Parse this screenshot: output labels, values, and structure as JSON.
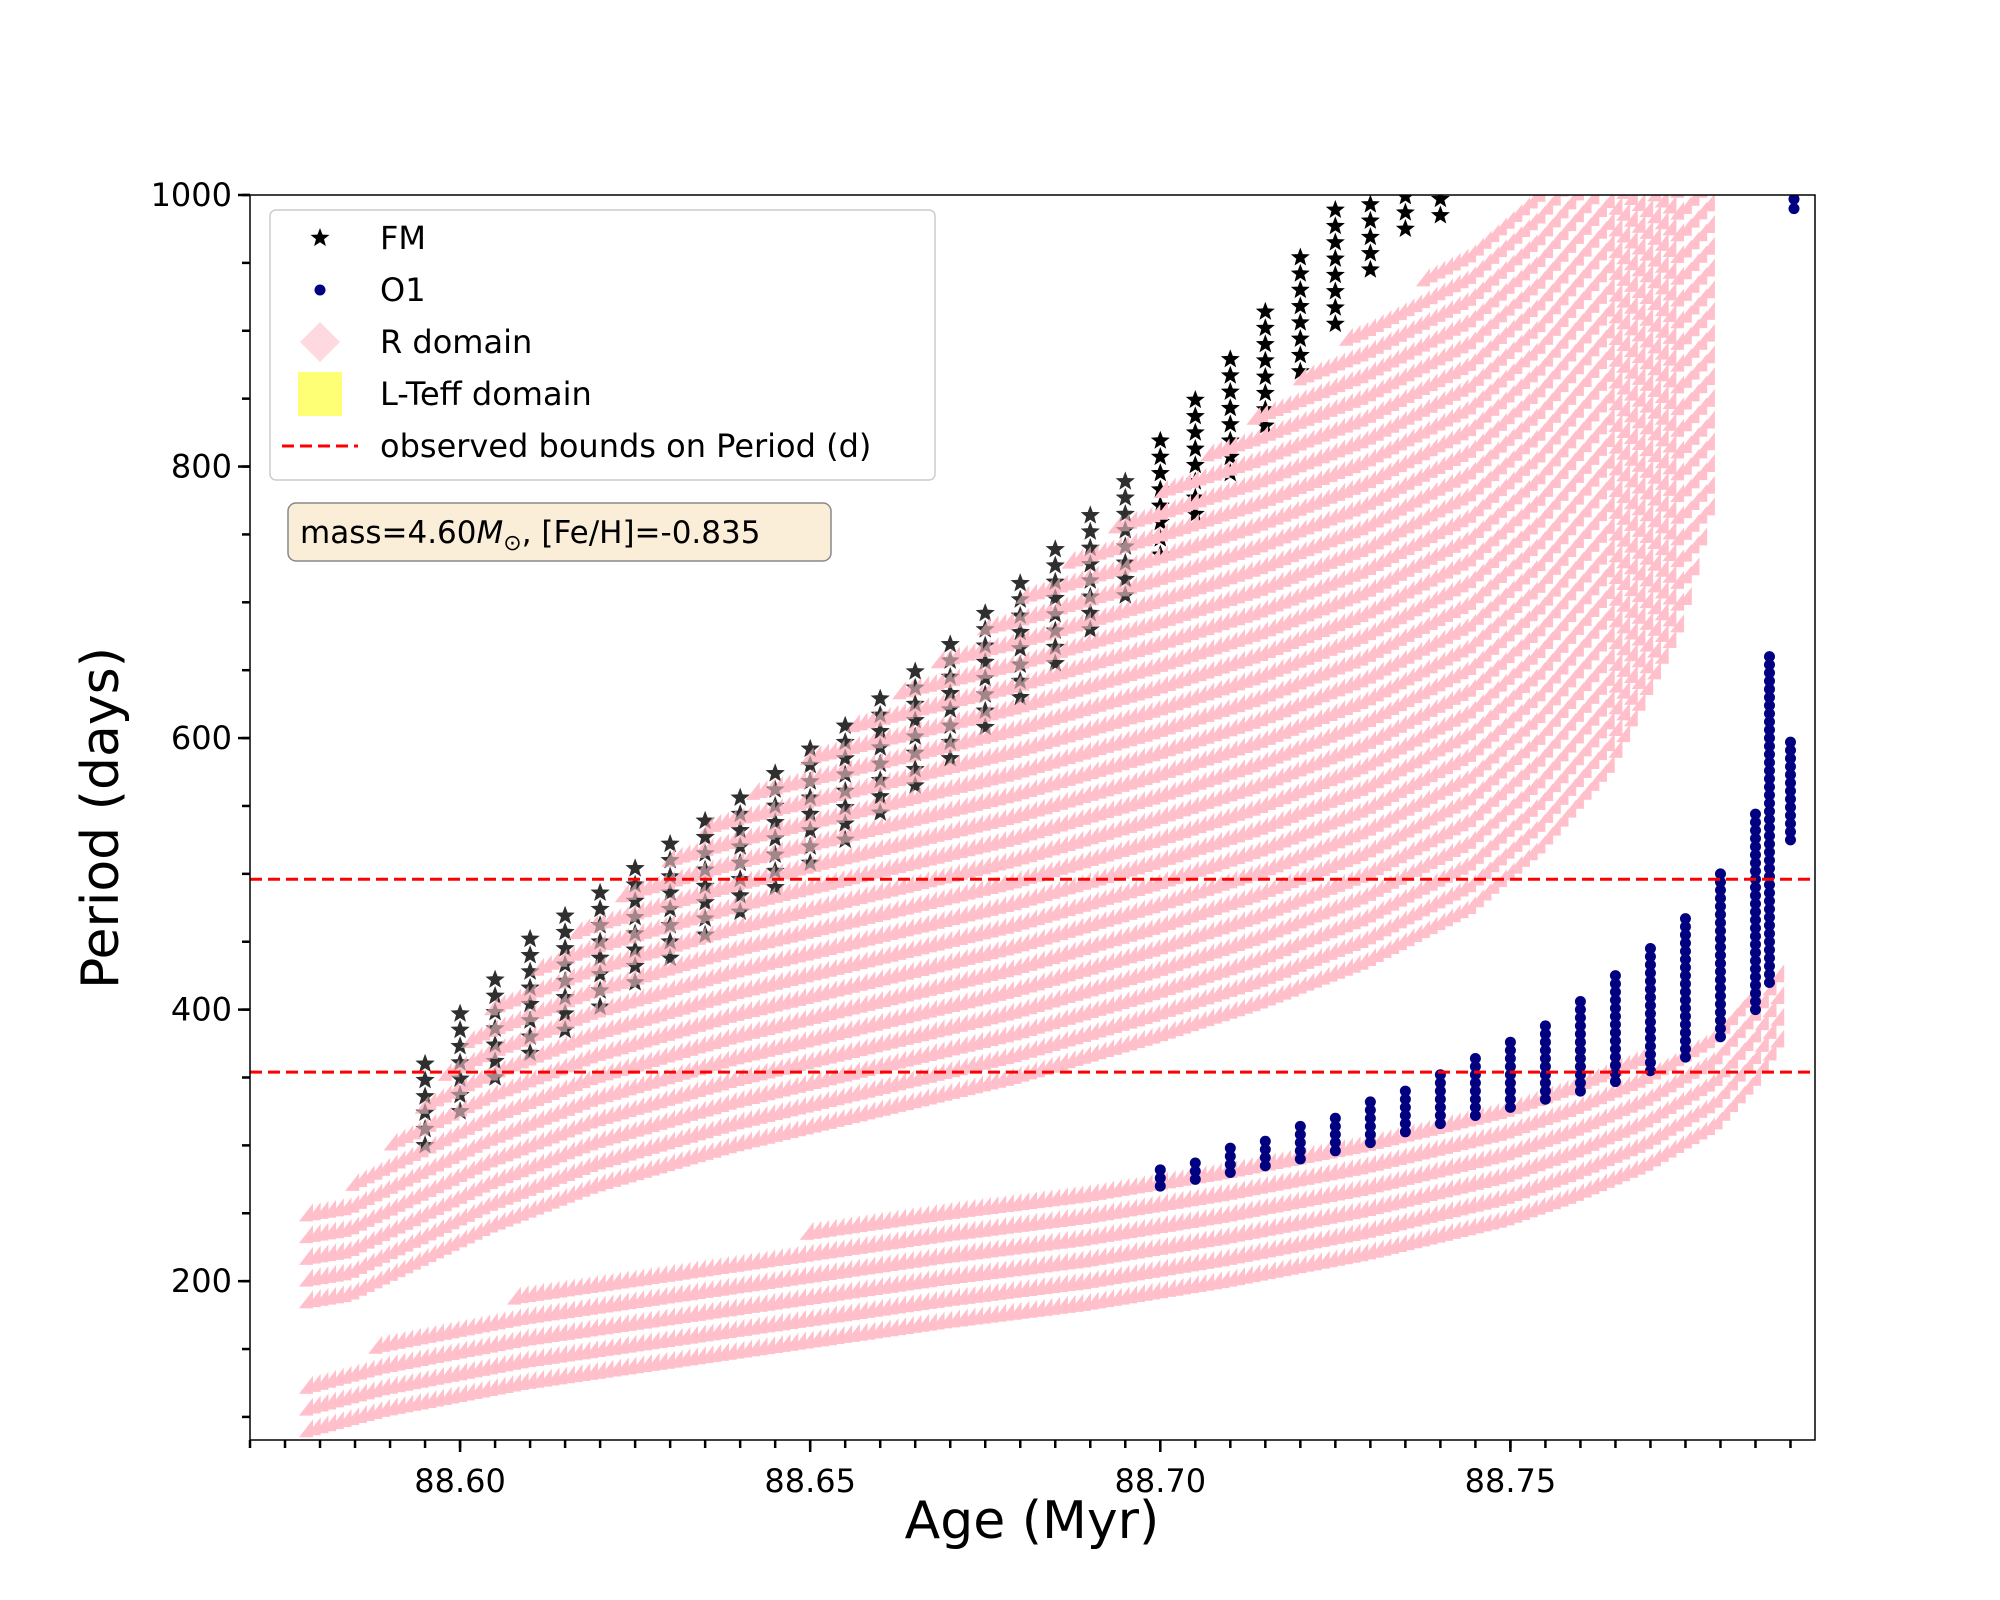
{
  "chart_data": {
    "type": "scatter",
    "title": "",
    "xlabel": "Age (Myr)",
    "ylabel": "Period (days)",
    "xlim": [
      88.57,
      88.7935
    ],
    "ylim": [
      83,
      1000
    ],
    "x_ticks": [
      "88.60",
      "88.65",
      "88.70",
      "88.75"
    ],
    "x_tick_values": [
      88.6,
      88.65,
      88.7,
      88.75
    ],
    "y_ticks": [
      "200",
      "400",
      "600",
      "800",
      "1000"
    ],
    "y_tick_values": [
      200,
      400,
      600,
      800,
      1000
    ],
    "minor_tick_step_x": 0.005,
    "minor_tick_step_y": 50,
    "grid": false,
    "legend_position": "top-left",
    "legend": [
      {
        "label": "FM",
        "marker": "star",
        "color": "#000000"
      },
      {
        "label": "O1",
        "marker": "circle",
        "color": "#000080"
      },
      {
        "label": "R domain",
        "marker": "diamond",
        "color": "#ffc0cb"
      },
      {
        "label": "L-Teff domain",
        "marker": "square",
        "color": "#ffff66"
      },
      {
        "label": "observed bounds on Period (d)",
        "marker": "dashed-line",
        "color": "#ff0000"
      }
    ],
    "annotation": {
      "prefix": "mass=4.60",
      "symbol": "M",
      "subscript": "⊙",
      "suffix": ", [Fe/H]=-0.835"
    },
    "hlines": [
      {
        "name": "observed upper bound",
        "y": 496,
        "color": "#ff0000",
        "style": "dashed"
      },
      {
        "name": "observed lower bound",
        "y": 354,
        "color": "#ff0000",
        "style": "dashed"
      }
    ],
    "series": [
      {
        "name": "FM",
        "marker": "star",
        "color": "#000000",
        "x": [
          88.595,
          88.6,
          88.605,
          88.61,
          88.615,
          88.62,
          88.625,
          88.63,
          88.635,
          88.64,
          88.645,
          88.65,
          88.655,
          88.66,
          88.665,
          88.67,
          88.675,
          88.68,
          88.685,
          88.69,
          88.695,
          88.7,
          88.705,
          88.71,
          88.715,
          88.72,
          88.725,
          88.73,
          88.735,
          88.74
        ],
        "y_top": [
          370,
          405,
          430,
          452,
          472,
          492,
          512,
          530,
          548,
          566,
          584,
          602,
          620,
          640,
          660,
          680,
          702,
          725,
          750,
          775,
          800,
          830,
          858,
          890,
          925,
          960,
          1000,
          1000,
          1000,
          1000
        ],
        "y_bottom": [
          300,
          325,
          350,
          368,
          385,
          402,
          420,
          438,
          455,
          472,
          490,
          508,
          525,
          545,
          565,
          585,
          608,
          630,
          655,
          680,
          705,
          735,
          765,
          795,
          830,
          870,
          905,
          945,
          975,
          985
        ]
      },
      {
        "name": "O1",
        "marker": "circle",
        "color": "#000080",
        "x": [
          88.7,
          88.705,
          88.71,
          88.715,
          88.72,
          88.725,
          88.73,
          88.735,
          88.74,
          88.745,
          88.75,
          88.755,
          88.76,
          88.765,
          88.77,
          88.775,
          88.78,
          88.785,
          88.787,
          88.79
        ],
        "y_top": [
          285,
          292,
          300,
          308,
          316,
          325,
          334,
          345,
          355,
          367,
          380,
          393,
          408,
          425,
          445,
          470,
          505,
          545,
          660,
          600
        ],
        "y_bottom": [
          270,
          275,
          280,
          285,
          290,
          296,
          302,
          310,
          316,
          322,
          328,
          334,
          340,
          347,
          355,
          365,
          380,
          400,
          420,
          525
        ]
      },
      {
        "name": "R domain (upper band)",
        "marker": "diamond",
        "color": "#ffc0cb",
        "x": [
          88.579,
          88.585,
          88.595,
          88.605,
          88.62,
          88.64,
          88.66,
          88.68,
          88.7,
          88.715,
          88.73,
          88.745,
          88.755,
          88.765,
          88.775,
          88.78
        ],
        "y_top": [
          245,
          265,
          320,
          395,
          465,
          545,
          615,
          695,
          775,
          835,
          900,
          960,
          1000,
          1000,
          1000,
          1000
        ],
        "y_bottom": [
          180,
          185,
          210,
          235,
          265,
          295,
          320,
          345,
          375,
          400,
          430,
          470,
          515,
          575,
          680,
          780
        ]
      },
      {
        "name": "R domain (lower band)",
        "marker": "diamond",
        "color": "#ffc0cb",
        "x": [
          88.579,
          88.59,
          88.61,
          88.63,
          88.65,
          88.67,
          88.69,
          88.71,
          88.73,
          88.75,
          88.76,
          88.77,
          88.78,
          88.786,
          88.79
        ],
        "y_top": [
          120,
          150,
          185,
          210,
          230,
          250,
          268,
          288,
          308,
          330,
          345,
          360,
          385,
          410,
          440
        ],
        "y_bottom": [
          85,
          100,
          120,
          135,
          150,
          165,
          178,
          195,
          215,
          240,
          258,
          280,
          310,
          345,
          380
        ]
      }
    ]
  }
}
